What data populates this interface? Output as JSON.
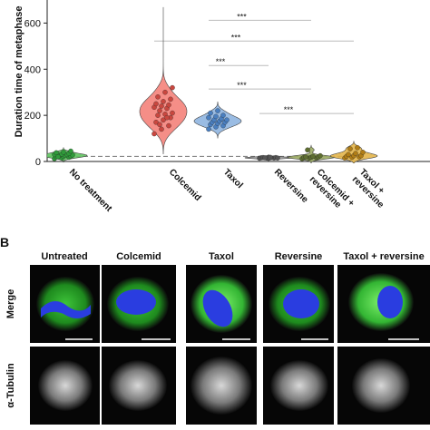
{
  "chart_data": {
    "type": "violin",
    "ylabel": "Duration time of metaphase",
    "categories": [
      "No treatment",
      "Colcemid",
      "Taxol",
      "Reversine",
      "Colcemid +\nreversine",
      "Taxol +\nreversine"
    ],
    "colors": [
      "#5fc45f",
      "#f4827a",
      "#8fb5e0",
      "#9a9a9a",
      "#9aaa62",
      "#e3b54a"
    ],
    "point_colors": [
      "#2f9a3a",
      "#c9473f",
      "#4a7fc0",
      "#555555",
      "#5e6e30",
      "#b07d16"
    ],
    "points": [
      [
        12,
        15,
        18,
        20,
        22,
        24,
        25,
        26,
        28,
        28,
        30,
        30,
        32,
        35,
        38,
        40,
        45,
        20
      ],
      [
        120,
        140,
        155,
        170,
        180,
        190,
        200,
        205,
        210,
        220,
        230,
        235,
        240,
        245,
        250,
        260,
        270,
        280,
        300,
        320,
        160,
        190
      ],
      [
        140,
        150,
        155,
        160,
        165,
        170,
        170,
        175,
        180,
        180,
        185,
        190,
        195,
        200,
        210,
        220
      ],
      [
        14,
        15,
        15,
        16,
        16,
        17,
        17,
        18,
        15,
        16
      ],
      [
        12,
        15,
        15,
        18,
        18,
        20,
        20,
        22,
        25,
        50
      ],
      [
        15,
        18,
        20,
        22,
        25,
        25,
        30,
        35,
        40,
        55,
        60
      ]
    ],
    "reference_line": 22,
    "ylim": [
      0,
      700
    ],
    "yticks": [
      0,
      200,
      400,
      600
    ],
    "annotations": [
      {
        "text": "***",
        "from": 2,
        "to": 4,
        "y": 612
      },
      {
        "text": "***",
        "from": 1,
        "to": 5,
        "y": 522
      },
      {
        "text": "***",
        "from": 2,
        "to": 3,
        "y": 416
      },
      {
        "text": "***",
        "from": 2,
        "to": 4,
        "y": 314
      },
      {
        "text": "***",
        "from": 3,
        "to": 5,
        "y": 208
      }
    ]
  },
  "panel_b": {
    "label": "B",
    "columns": [
      "Untreated",
      "Colcemid",
      "Taxol",
      "Reversine",
      "Taxol + reversine"
    ],
    "rows": [
      "Merge",
      "α-Tubulin"
    ]
  }
}
